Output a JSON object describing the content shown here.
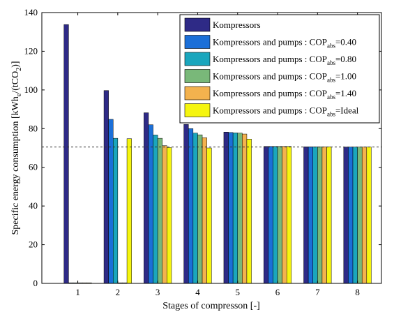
{
  "chart_data": {
    "type": "bar",
    "title": "",
    "xlabel": "Stages of compresson    [-]",
    "ylabel": {
      "main": "Specific energy consumption   [kWh",
      "sub1": "e",
      "mid": "/(tCO",
      "sub2": "2",
      "end": ")]"
    },
    "categories": [
      "1",
      "2",
      "3",
      "4",
      "5",
      "6",
      "7",
      "8"
    ],
    "ylim": [
      0,
      140
    ],
    "yticks": [
      0,
      20,
      40,
      60,
      80,
      100,
      120,
      140
    ],
    "reference_line": 70.5,
    "grid": false,
    "legend_position": "top-right",
    "series": [
      {
        "name": "Kompressors",
        "legend": {
          "prefix": "Kompressors",
          "sub": "",
          "suffix": ""
        },
        "color": "#2e2a86",
        "values": [
          133.8,
          99.7,
          88.2,
          82.2,
          78.2,
          70.8,
          70.6,
          70.5
        ]
      },
      {
        "name": "Kompressors and pumps : COP abs =0.40",
        "legend": {
          "prefix": "Kompressors and pumps : COP",
          "sub": "abs",
          "suffix": "=0.40"
        },
        "color": "#1b6fd8",
        "values": [
          0.3,
          84.8,
          82.0,
          80.0,
          78.0,
          70.8,
          70.6,
          70.5
        ]
      },
      {
        "name": "Kompressors and pumps : COP abs =0.80",
        "legend": {
          "prefix": "Kompressors and pumps : COP",
          "sub": "abs",
          "suffix": "=0.80"
        },
        "color": "#1aa6bd",
        "values": [
          0.3,
          75.0,
          76.7,
          77.7,
          77.8,
          70.8,
          70.6,
          70.5
        ]
      },
      {
        "name": "Kompressors and pumps : COP abs =1.00",
        "legend": {
          "prefix": "Kompressors and pumps : COP",
          "sub": "abs",
          "suffix": "=1.00"
        },
        "color": "#79b879",
        "values": [
          0.3,
          0.3,
          75.0,
          76.8,
          77.7,
          70.8,
          70.6,
          70.5
        ]
      },
      {
        "name": "Kompressors and pumps : COP abs =1.40",
        "legend": {
          "prefix": "Kompressors and pumps : COP",
          "sub": "abs",
          "suffix": "=1.40"
        },
        "color": "#f3b24e",
        "values": [
          0.3,
          0.3,
          71.2,
          75.3,
          77.2,
          70.8,
          70.6,
          70.5
        ]
      },
      {
        "name": "Kompressors and pumps : COP abs =Ideal",
        "legend": {
          "prefix": "Kompressors and pumps : COP",
          "sub": "abs",
          "suffix": "=Ideal"
        },
        "color": "#f5f50f",
        "values": [
          0.3,
          74.8,
          70.2,
          70.0,
          74.6,
          70.8,
          70.6,
          70.5
        ]
      }
    ]
  }
}
